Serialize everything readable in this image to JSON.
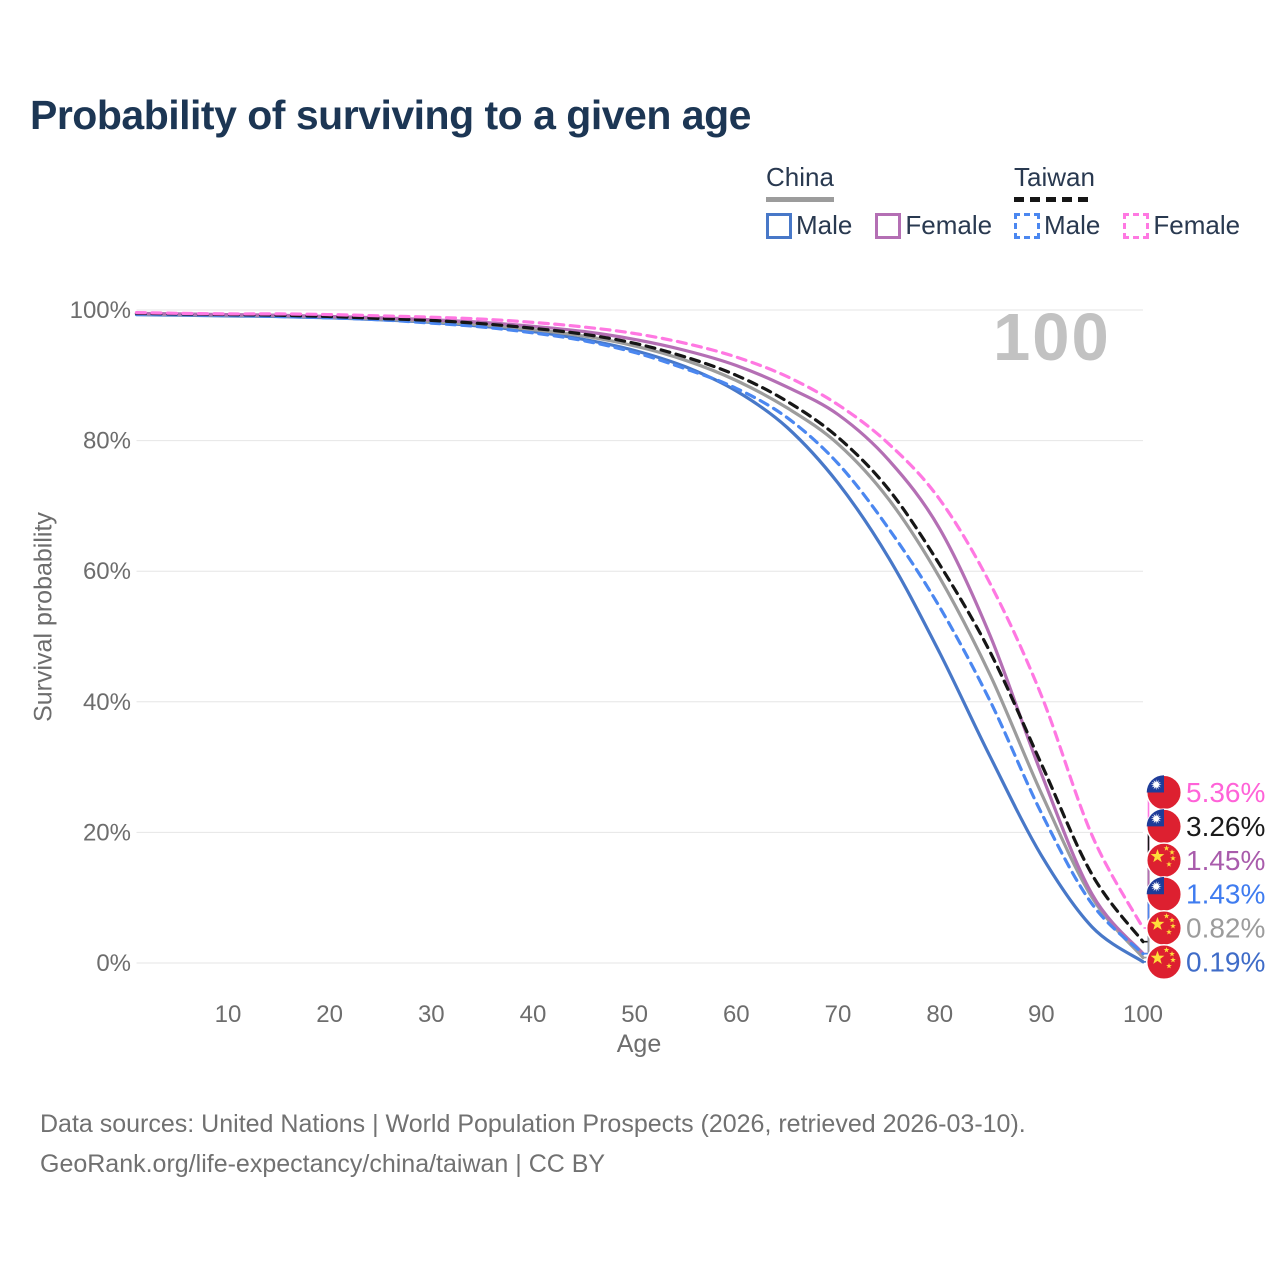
{
  "title": "Probability of surviving to a given age",
  "watermark": "100",
  "legend": {
    "groups": [
      {
        "label": "China",
        "line_style": "solid",
        "line_color": "#9c9c9c",
        "items": [
          {
            "label": "Male",
            "style": "solid",
            "color": "#4878c8"
          },
          {
            "label": "Female",
            "style": "solid",
            "color": "#b46fb4"
          }
        ]
      },
      {
        "label": "Taiwan",
        "line_style": "dashed",
        "line_color": "#161616",
        "items": [
          {
            "label": "Male",
            "style": "dashed",
            "color": "#4b87f0"
          },
          {
            "label": "Female",
            "style": "dashed",
            "color": "#ff78e2"
          }
        ]
      }
    ]
  },
  "chart_data": {
    "type": "line",
    "title": "Probability of surviving to a given age",
    "xlabel": "Age",
    "ylabel": "Survival probability",
    "xlim": [
      1,
      100
    ],
    "ylim": [
      0,
      100
    ],
    "x_ticks": [
      10,
      20,
      30,
      40,
      50,
      60,
      70,
      80,
      90,
      100
    ],
    "y_ticks": [
      0,
      20,
      40,
      60,
      80,
      100
    ],
    "y_tick_suffix": "%",
    "grid": "horizontal-only",
    "legend_position": "top-right",
    "ages": [
      1,
      5,
      10,
      15,
      20,
      25,
      30,
      35,
      40,
      45,
      50,
      55,
      60,
      65,
      70,
      75,
      80,
      85,
      90,
      95,
      100
    ],
    "series": [
      {
        "id": "china-male",
        "name": "China Male",
        "line": "solid",
        "color": "#4878c8",
        "flag": "china",
        "end_label": "0.19%",
        "end_label_color": "#3f6cc8",
        "values": [
          99.3,
          99.2,
          99.1,
          99.0,
          98.8,
          98.5,
          98.1,
          97.5,
          96.7,
          95.5,
          93.8,
          91.3,
          87.6,
          82.0,
          73.5,
          62.0,
          47.5,
          31.5,
          16.5,
          5.5,
          0.19
        ]
      },
      {
        "id": "china-total",
        "name": "China",
        "line": "solid",
        "color": "#9c9c9c",
        "flag": "china",
        "end_label": "0.82%",
        "end_label_color": "#9c9c9c",
        "values": [
          99.4,
          99.3,
          99.2,
          99.1,
          98.9,
          98.6,
          98.2,
          97.7,
          97.0,
          96.0,
          94.5,
          92.3,
          89.2,
          85.0,
          79.5,
          71.0,
          59.0,
          44.0,
          26.0,
          10.0,
          0.82
        ]
      },
      {
        "id": "china-female",
        "name": "China Female",
        "line": "solid",
        "color": "#b46fb4",
        "flag": "china",
        "end_label": "1.45%",
        "end_label_color": "#a95cac",
        "values": [
          99.5,
          99.4,
          99.3,
          99.2,
          99.0,
          98.8,
          98.5,
          98.1,
          97.5,
          96.7,
          95.5,
          93.8,
          91.5,
          88.2,
          84.0,
          77.0,
          66.5,
          50.0,
          29.0,
          10.5,
          1.45
        ]
      },
      {
        "id": "taiwan-male",
        "name": "Taiwan Male",
        "line": "dashed",
        "color": "#4b87f0",
        "flag": "taiwan",
        "end_label": "1.43%",
        "end_label_color": "#3f7cf0",
        "values": [
          99.4,
          99.3,
          99.2,
          99.0,
          98.8,
          98.5,
          98.0,
          97.4,
          96.5,
          95.3,
          93.5,
          91.0,
          88.0,
          83.5,
          76.5,
          66.5,
          54.5,
          40.0,
          23.0,
          9.0,
          1.43
        ]
      },
      {
        "id": "taiwan-total",
        "name": "Taiwan",
        "line": "dashed",
        "color": "#161616",
        "flag": "taiwan",
        "end_label": "3.26%",
        "end_label_color": "#1a1a1a",
        "values": [
          99.5,
          99.4,
          99.3,
          99.2,
          99.0,
          98.7,
          98.4,
          97.9,
          97.2,
          96.3,
          94.9,
          92.8,
          90.0,
          86.0,
          80.5,
          72.5,
          61.0,
          47.5,
          30.5,
          13.5,
          3.26
        ]
      },
      {
        "id": "taiwan-female",
        "name": "Taiwan Female",
        "line": "dashed",
        "color": "#ff78e2",
        "flag": "taiwan",
        "end_label": "5.36%",
        "end_label_color": "#ff63d8",
        "values": [
          99.6,
          99.5,
          99.4,
          99.4,
          99.3,
          99.1,
          98.9,
          98.6,
          98.1,
          97.4,
          96.4,
          94.9,
          92.8,
          89.8,
          85.5,
          79.5,
          71.0,
          58.0,
          41.0,
          19.5,
          5.36
        ]
      }
    ],
    "label_stack": [
      "taiwan-female",
      "taiwan-total",
      "china-female",
      "taiwan-male",
      "china-total",
      "china-male"
    ]
  },
  "footer": {
    "line1": "Data sources: United Nations | World Population Prospects (2026, retrieved 2026-03-10).",
    "line2": "GeoRank.org/life-expectancy/china/taiwan | CC BY"
  }
}
